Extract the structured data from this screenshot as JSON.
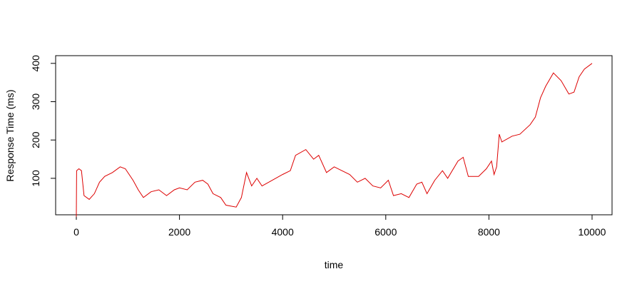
{
  "chart_data": {
    "type": "line",
    "title": "",
    "xlabel": "time",
    "ylabel": "Response Time (ms)",
    "xlim": [
      -400,
      10400
    ],
    "ylim": [
      0,
      420
    ],
    "xticks": [
      0,
      2000,
      4000,
      6000,
      8000,
      10000
    ],
    "yticks": [
      100,
      200,
      300,
      400
    ],
    "grid": false,
    "line_color": "#dd0000",
    "series": [
      {
        "x": [
          0,
          5,
          50,
          100,
          150,
          250,
          350,
          450,
          550,
          700,
          850,
          950,
          1100,
          1200,
          1300,
          1450,
          1600,
          1750,
          1900,
          2000,
          2150,
          2300,
          2450,
          2550,
          2650,
          2800,
          2900,
          3100,
          3200,
          3300,
          3400,
          3500,
          3600,
          3800,
          4000,
          4150,
          4250,
          4450,
          4600,
          4700,
          4850,
          5000,
          5150,
          5300,
          5450,
          5600,
          5750,
          5900,
          6050,
          6150,
          6300,
          6450,
          6600,
          6700,
          6800,
          6950,
          7100,
          7200,
          7400,
          7500,
          7600,
          7800,
          7950,
          8050,
          8100,
          8150,
          8200,
          8250,
          8450,
          8600,
          8800,
          8900,
          9000,
          9100,
          9250,
          9400,
          9550,
          9650,
          9750,
          9850,
          10000
        ],
        "y": [
          0,
          120,
          125,
          120,
          55,
          45,
          60,
          90,
          105,
          115,
          130,
          125,
          95,
          70,
          50,
          65,
          70,
          55,
          70,
          75,
          70,
          90,
          95,
          85,
          60,
          50,
          30,
          25,
          50,
          115,
          80,
          100,
          80,
          95,
          110,
          120,
          160,
          175,
          150,
          160,
          115,
          130,
          120,
          110,
          90,
          100,
          80,
          75,
          95,
          55,
          60,
          50,
          85,
          90,
          60,
          95,
          120,
          100,
          145,
          155,
          105,
          105,
          125,
          145,
          110,
          130,
          215,
          195,
          210,
          215,
          240,
          260,
          310,
          340,
          375,
          355,
          320,
          325,
          365,
          385,
          400
        ]
      }
    ]
  }
}
